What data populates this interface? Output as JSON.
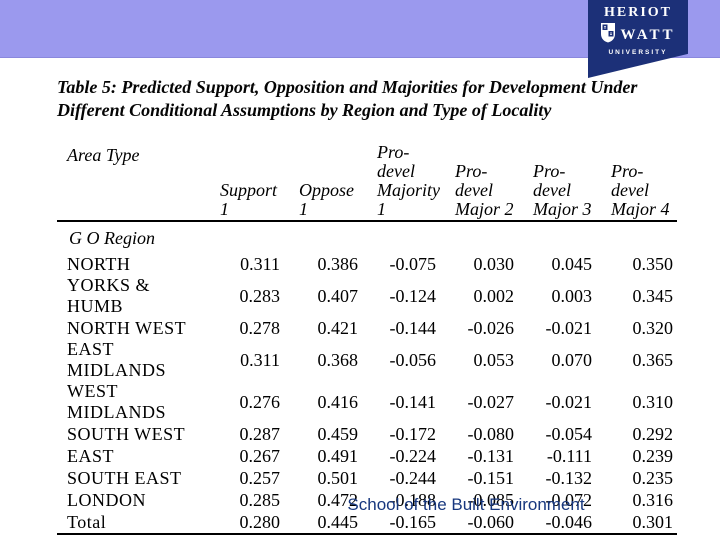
{
  "slide": {
    "title_lines": [
      "Table 5: Predicted Support, Opposition and Majorities for Development Under",
      "Different Conditional Assumptions by Region and Type of Locality"
    ],
    "footer": "School of the Built Environment"
  },
  "logo": {
    "line1": "HERIOT",
    "line2": "WATT",
    "line3": "UNIVERSITY",
    "shield_icon": "heriot-watt-crest",
    "bg_color": "#1c3078"
  },
  "theme": {
    "band_color": "#9b99ee",
    "footer_color": "#17377e",
    "rule_color": "#000000"
  },
  "table": {
    "headers": [
      "Area Type",
      "Support\n1",
      "Oppose 1",
      "Pro-\ndevel\nMajority\n1",
      "Pro-\ndevel\nMajor 2",
      "Pro-devel\nMajor 3",
      "Pro-\ndevel\nMajor 4"
    ],
    "group_label": "G O Region",
    "rows": [
      {
        "label": "NORTH",
        "values": [
          "0.311",
          "0.386",
          "-0.075",
          "0.030",
          "0.045",
          "0.350"
        ]
      },
      {
        "label": "YORKS & HUMB",
        "values": [
          "0.283",
          "0.407",
          "-0.124",
          "0.002",
          "0.003",
          "0.345"
        ]
      },
      {
        "label": "NORTH WEST",
        "values": [
          "0.278",
          "0.421",
          "-0.144",
          "-0.026",
          "-0.021",
          "0.320"
        ]
      },
      {
        "label": "EAST MIDLANDS",
        "values": [
          "0.311",
          "0.368",
          "-0.056",
          "0.053",
          "0.070",
          "0.365"
        ]
      },
      {
        "label": "WEST MIDLANDS",
        "values": [
          "0.276",
          "0.416",
          "-0.141",
          "-0.027",
          "-0.021",
          "0.310"
        ]
      },
      {
        "label": "SOUTH WEST",
        "values": [
          "0.287",
          "0.459",
          "-0.172",
          "-0.080",
          "-0.054",
          "0.292"
        ]
      },
      {
        "label": "EAST",
        "values": [
          "0.267",
          "0.491",
          "-0.224",
          "-0.131",
          "-0.111",
          "0.239"
        ]
      },
      {
        "label": "SOUTH EAST",
        "values": [
          "0.257",
          "0.501",
          "-0.244",
          "-0.151",
          "-0.132",
          "0.235"
        ]
      },
      {
        "label": "LONDON",
        "values": [
          "0.285",
          "0.472",
          "-0.188",
          "-0.085",
          "-0.072",
          "0.316"
        ]
      },
      {
        "label": "Total",
        "values": [
          "0.280",
          "0.445",
          "-0.165",
          "-0.060",
          "-0.046",
          "0.301"
        ]
      }
    ]
  }
}
